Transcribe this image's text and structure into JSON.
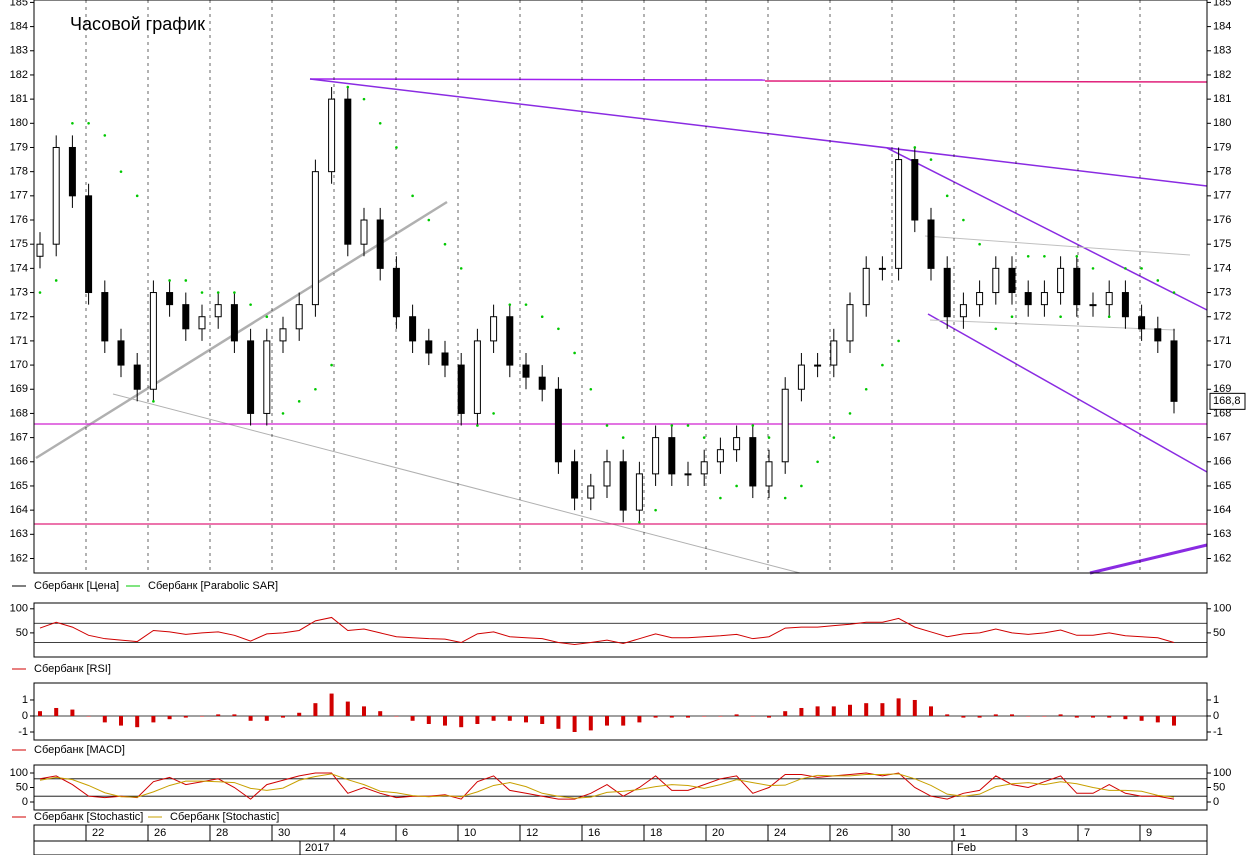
{
  "title": "Часовой график",
  "last_price_label": "168,8",
  "x_axis": {
    "ticks": [
      "22",
      "26",
      "28",
      "30",
      "4",
      "6",
      "10",
      "12",
      "16",
      "18",
      "20",
      "24",
      "26",
      "30",
      "1",
      "3",
      "7",
      "9"
    ],
    "months": [
      "2017",
      "Feb"
    ]
  },
  "chart_data": [
    {
      "type": "candlestick",
      "ylim": [
        161.4,
        185.1
      ],
      "yticks": [
        162,
        163,
        164,
        165,
        166,
        167,
        168,
        169,
        170,
        171,
        172,
        173,
        174,
        175,
        176,
        177,
        178,
        179,
        180,
        181,
        182,
        183,
        184,
        185
      ],
      "series": [
        {
          "name": "Сбербанк [Цена]",
          "color": "#000000",
          "open": [
            174.5,
            175,
            179,
            177,
            173,
            171,
            170,
            169,
            173,
            172.5,
            171.5,
            172,
            172.5,
            171,
            168,
            171,
            171.5,
            172.5,
            178,
            181,
            175,
            176,
            174,
            172,
            171,
            170.5,
            170,
            168,
            171,
            172,
            170,
            169.5,
            169,
            166,
            164.5,
            165,
            166,
            164,
            165.5,
            167,
            165.5,
            165.5,
            166,
            166.5,
            167,
            165,
            166,
            169,
            170,
            170,
            171,
            172.5,
            174,
            174,
            178.5,
            176,
            174,
            172,
            172.5,
            173,
            174,
            173,
            172.5,
            173,
            174,
            172.5,
            172.5,
            173,
            172,
            171.5,
            171
          ],
          "high": [
            175.5,
            179.5,
            179.5,
            177.5,
            173.5,
            171.5,
            170.5,
            173.5,
            173.5,
            173,
            172.5,
            173,
            173,
            171.5,
            171.5,
            172,
            173,
            178.5,
            181.5,
            181.5,
            176.5,
            176.5,
            174.5,
            172.5,
            171.5,
            171,
            170.5,
            171.5,
            172.5,
            172.5,
            170.5,
            170,
            169.5,
            166.5,
            165.5,
            166.5,
            166.5,
            166,
            167.5,
            167.5,
            166,
            166.5,
            167,
            167.5,
            167.5,
            166.5,
            169.5,
            170.5,
            170.5,
            171.5,
            173,
            174.5,
            174.5,
            179,
            179,
            176.5,
            174.5,
            173,
            173.5,
            174.5,
            174.5,
            173.5,
            173.5,
            174.5,
            174.5,
            173,
            173.5,
            173.5,
            172.5,
            172,
            171.5
          ],
          "low": [
            174,
            174.5,
            176.5,
            172.5,
            170.5,
            169.5,
            168.5,
            168.5,
            172,
            171,
            171,
            171.5,
            170.5,
            167.5,
            167.5,
            170.5,
            171,
            172,
            177.5,
            174.5,
            174.5,
            173.5,
            171.5,
            170.5,
            170,
            169.5,
            167.5,
            167.5,
            170.5,
            169.5,
            169,
            168.5,
            165.5,
            164,
            164,
            164.5,
            163.5,
            163.5,
            165,
            165,
            165,
            165,
            165.5,
            166,
            164.5,
            164.5,
            165.5,
            168.5,
            169.5,
            169.5,
            170.5,
            172,
            173.5,
            173.5,
            175.5,
            173.5,
            171.5,
            171.5,
            172,
            172.5,
            172.5,
            172,
            172,
            172.5,
            172,
            172,
            172,
            171.5,
            171,
            170.5,
            168
          ],
          "close": [
            175,
            179,
            177,
            173,
            171,
            170,
            169,
            173,
            172.5,
            171.5,
            172,
            172.5,
            171,
            168,
            171,
            171.5,
            172.5,
            178,
            181,
            175,
            176,
            174,
            172,
            171,
            170.5,
            170,
            168,
            171,
            172,
            170,
            169.5,
            169,
            166,
            164.5,
            165,
            166,
            164,
            165.5,
            167,
            165.5,
            165.5,
            166,
            166.5,
            167,
            165,
            166,
            169,
            170,
            170,
            171,
            172.5,
            174,
            174,
            178.5,
            176,
            174,
            172,
            172.5,
            173,
            174,
            173,
            172.5,
            173,
            174,
            172.5,
            172.5,
            173,
            172,
            171.5,
            171,
            168.5
          ]
        },
        {
          "name": "Сбербанк [Parabolic SAR]",
          "color": "#00c800",
          "values": [
            173,
            173.5,
            180,
            180,
            179.5,
            178,
            177,
            168.5,
            173.5,
            173.5,
            173,
            173,
            173,
            172.5,
            172,
            168,
            168.5,
            169,
            170,
            181.5,
            181,
            180,
            179,
            177,
            176,
            175,
            174,
            167.5,
            168,
            172.5,
            172.5,
            172,
            171.5,
            170.5,
            169,
            167.5,
            167,
            163.5,
            164,
            167.5,
            167.5,
            167,
            164.5,
            165,
            167.5,
            167,
            164.5,
            165,
            166,
            167,
            168,
            169,
            170,
            171,
            179,
            178.5,
            177,
            176,
            175,
            171.5,
            172,
            174.5,
            174.5,
            172,
            174.5,
            174,
            172,
            174,
            174,
            173.5,
            173
          ]
        }
      ]
    },
    {
      "type": "line",
      "ylim": [
        0,
        112
      ],
      "yticks": [
        50,
        100
      ],
      "levels": [
        30,
        70
      ],
      "series": [
        {
          "name": "Сбербанк [RSI]",
          "color": "#d00000",
          "values": [
            60,
            72,
            62,
            45,
            38,
            35,
            32,
            55,
            52,
            47,
            50,
            52,
            45,
            33,
            48,
            50,
            55,
            75,
            82,
            55,
            58,
            50,
            42,
            40,
            38,
            37,
            30,
            48,
            52,
            42,
            40,
            38,
            30,
            26,
            30,
            35,
            28,
            38,
            48,
            40,
            40,
            42,
            44,
            47,
            38,
            42,
            60,
            62,
            62,
            65,
            68,
            72,
            72,
            80,
            62,
            52,
            42,
            48,
            50,
            58,
            50,
            47,
            50,
            56,
            45,
            45,
            50,
            44,
            42,
            40,
            30
          ]
        }
      ]
    },
    {
      "type": "bar",
      "ylim": [
        -1.5,
        2.06
      ],
      "yticks": [
        -1,
        0,
        1
      ],
      "series": [
        {
          "name": "Сбербанк [MACD]",
          "color": "#d00000",
          "values": [
            0.3,
            0.5,
            0.4,
            0,
            -0.4,
            -0.6,
            -0.7,
            -0.4,
            -0.2,
            -0.1,
            0,
            0.1,
            0.1,
            -0.3,
            -0.3,
            -0.1,
            0.2,
            0.8,
            1.4,
            0.9,
            0.6,
            0.3,
            0,
            -0.3,
            -0.5,
            -0.6,
            -0.7,
            -0.5,
            -0.3,
            -0.3,
            -0.4,
            -0.5,
            -0.8,
            -1,
            -0.9,
            -0.6,
            -0.6,
            -0.4,
            -0.1,
            -0.1,
            -0.1,
            0,
            0,
            0.1,
            0,
            -0.1,
            0.3,
            0.5,
            0.6,
            0.6,
            0.7,
            0.8,
            0.8,
            1.1,
            1,
            0.6,
            0.1,
            -0.1,
            -0.1,
            0.1,
            0.1,
            0,
            0,
            0.1,
            -0.1,
            -0.1,
            -0.1,
            -0.2,
            -0.3,
            -0.4,
            -0.6
          ]
        }
      ]
    },
    {
      "type": "line",
      "ylim": [
        -27.6,
        127.6
      ],
      "yticks": [
        0,
        50,
        100
      ],
      "levels": [
        20,
        80
      ],
      "series": [
        {
          "name": "Сбербанк [Stochastic]",
          "color": "#d00000",
          "values": [
            80,
            90,
            60,
            20,
            15,
            20,
            15,
            70,
            85,
            60,
            70,
            80,
            50,
            10,
            60,
            75,
            90,
            100,
            100,
            30,
            50,
            30,
            15,
            20,
            20,
            25,
            10,
            70,
            90,
            40,
            30,
            20,
            10,
            10,
            30,
            60,
            20,
            50,
            90,
            40,
            40,
            60,
            80,
            90,
            30,
            50,
            95,
            95,
            85,
            90,
            95,
            100,
            90,
            100,
            50,
            20,
            10,
            30,
            40,
            90,
            60,
            50,
            70,
            90,
            30,
            30,
            60,
            30,
            20,
            20,
            10
          ]
        },
        {
          "name": "Сбербанк [Stochastic]",
          "color": "#c8a000",
          "values": [
            75,
            85,
            77,
            57,
            32,
            18,
            17,
            35,
            57,
            72,
            72,
            70,
            67,
            47,
            40,
            48,
            75,
            88,
            97,
            77,
            60,
            37,
            32,
            22,
            18,
            22,
            18,
            35,
            57,
            67,
            53,
            30,
            20,
            13,
            17,
            33,
            37,
            43,
            53,
            60,
            57,
            47,
            60,
            77,
            67,
            57,
            58,
            80,
            92,
            90,
            90,
            95,
            95,
            97,
            80,
            57,
            27,
            20,
            27,
            53,
            63,
            67,
            60,
            70,
            63,
            50,
            40,
            40,
            37,
            23,
            17
          ]
        }
      ]
    }
  ]
}
